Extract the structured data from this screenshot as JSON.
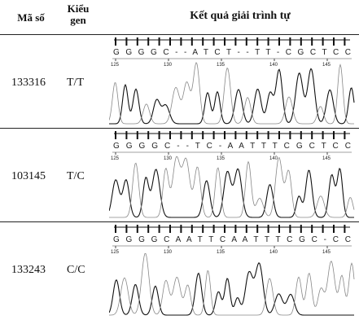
{
  "header": {
    "id": "Mã số",
    "genotype": "Kiểu gen",
    "result": "Kết quả giải trình tự"
  },
  "rows": [
    {
      "id": "133316",
      "genotype": "T/T",
      "sequence": "G G G G C - - A T C T - - T T - C G C T C C",
      "positions": [
        125,
        130,
        135,
        140,
        145
      ]
    },
    {
      "id": "103145",
      "genotype": "T/C",
      "sequence": "G G G G C - - T C - A A T T T C G C T C C",
      "positions": [
        125,
        130,
        135,
        140,
        145
      ]
    },
    {
      "id": "133243",
      "genotype": "C/C",
      "sequence": "G G G G C A A T T C A A T T T C G C - C C",
      "positions": [
        125,
        130,
        135,
        140,
        145
      ]
    }
  ]
}
